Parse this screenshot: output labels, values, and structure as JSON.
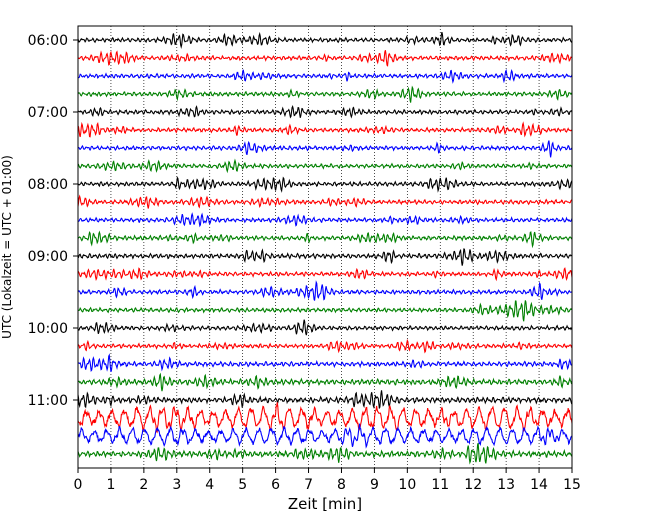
{
  "chart_data": {
    "type": "line",
    "title": "",
    "xlabel": "Zeit  [min]",
    "ylabel": "UTC (Lokalzeit = UTC + 01:00)",
    "xlim": [
      0,
      15
    ],
    "x_ticks": [
      0,
      1,
      2,
      3,
      4,
      5,
      6,
      7,
      8,
      9,
      10,
      11,
      12,
      13,
      14,
      15
    ],
    "x_tick_labels": [
      "0",
      "1",
      "2",
      "3",
      "4",
      "5",
      "6",
      "7",
      "8",
      "9",
      "10",
      "11",
      "12",
      "13",
      "14",
      "15"
    ],
    "y_ticks": [
      "06:00",
      "07:00",
      "08:00",
      "09:00",
      "10:00",
      "11:00"
    ],
    "grid": "vertical dotted at each minute",
    "minutes_per_row": 15,
    "rows_per_hour": 4,
    "row_colors": [
      "#000000",
      "#ff0000",
      "#0000ff",
      "#008000"
    ],
    "rows": [
      {
        "start": "06:00",
        "color": "#000000",
        "amplitude": 1.0
      },
      {
        "start": "06:15",
        "color": "#ff0000",
        "amplitude": 1.0
      },
      {
        "start": "06:30",
        "color": "#0000ff",
        "amplitude": 1.0
      },
      {
        "start": "06:45",
        "color": "#008000",
        "amplitude": 1.0
      },
      {
        "start": "07:00",
        "color": "#000000",
        "amplitude": 1.0
      },
      {
        "start": "07:15",
        "color": "#ff0000",
        "amplitude": 1.0
      },
      {
        "start": "07:30",
        "color": "#0000ff",
        "amplitude": 1.0
      },
      {
        "start": "07:45",
        "color": "#008000",
        "amplitude": 1.0
      },
      {
        "start": "08:00",
        "color": "#000000",
        "amplitude": 1.0
      },
      {
        "start": "08:15",
        "color": "#ff0000",
        "amplitude": 1.0
      },
      {
        "start": "08:30",
        "color": "#0000ff",
        "amplitude": 1.0
      },
      {
        "start": "08:45",
        "color": "#008000",
        "amplitude": 1.0
      },
      {
        "start": "09:00",
        "color": "#000000",
        "amplitude": 1.1
      },
      {
        "start": "09:15",
        "color": "#ff0000",
        "amplitude": 1.0
      },
      {
        "start": "09:30",
        "color": "#0000ff",
        "amplitude": 1.0
      },
      {
        "start": "09:45",
        "color": "#008000",
        "amplitude": 1.0
      },
      {
        "start": "10:00",
        "color": "#000000",
        "amplitude": 1.0
      },
      {
        "start": "10:15",
        "color": "#ff0000",
        "amplitude": 1.0
      },
      {
        "start": "10:30",
        "color": "#0000ff",
        "amplitude": 1.1
      },
      {
        "start": "10:45",
        "color": "#008000",
        "amplitude": 1.3
      },
      {
        "start": "11:00",
        "color": "#000000",
        "amplitude": 1.3
      },
      {
        "start": "11:15",
        "color": "#ff0000",
        "amplitude": 4.0
      },
      {
        "start": "11:30",
        "color": "#0000ff",
        "amplitude": 3.0
      },
      {
        "start": "11:45",
        "color": "#008000",
        "amplitude": 1.4
      }
    ]
  }
}
